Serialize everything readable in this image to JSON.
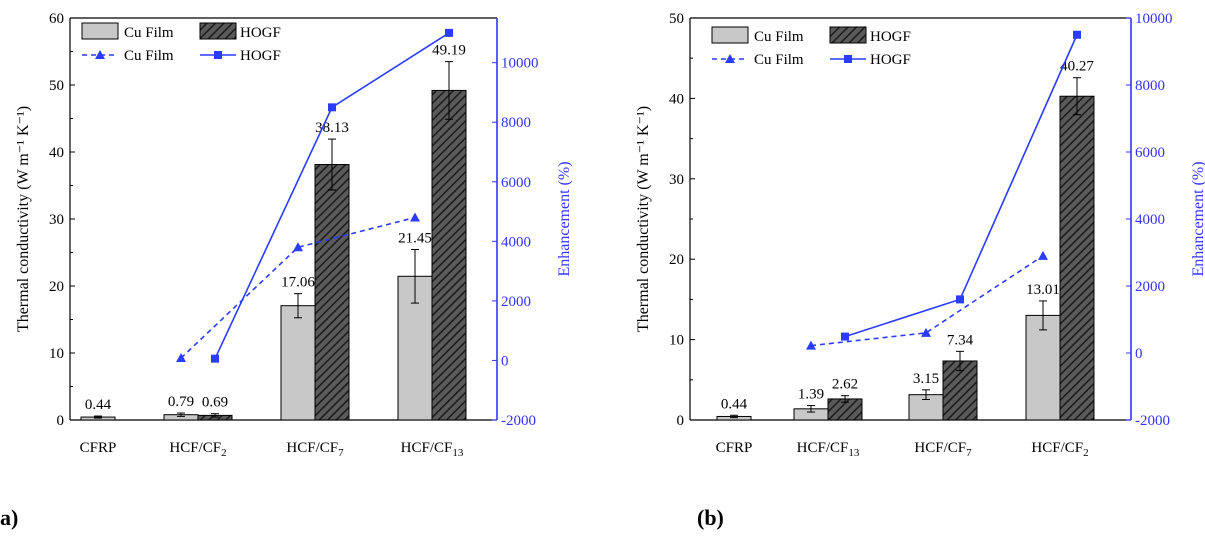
{
  "colors": {
    "axis_left": "#000000",
    "axis_right": "#3333ff",
    "bar_cu": "#c8c8c8",
    "bar_hogf_bg": "#666666",
    "line": "#2a3cff"
  },
  "panels": {
    "a": {
      "label": "a)"
    },
    "b": {
      "label": "(b)"
    }
  },
  "chart_data": [
    {
      "panel": "a",
      "type": "bar+line",
      "title": "",
      "ylabel_left": "Thermal conductivity (W m⁻¹ K⁻¹)",
      "ylabel_right": "Enhancement (%)",
      "ylim_left": [
        0,
        60
      ],
      "ylim_right": [
        -2000,
        11500
      ],
      "yticks_left": [
        0,
        10,
        20,
        30,
        40,
        50,
        60
      ],
      "yticks_right": [
        -2000,
        0,
        2000,
        4000,
        6000,
        8000,
        10000
      ],
      "categories": [
        {
          "base": "CFRP",
          "sub": ""
        },
        {
          "base": "HCF/CF",
          "sub": "2"
        },
        {
          "base": "HCF/CF",
          "sub": "7"
        },
        {
          "base": "HCF/CF",
          "sub": "13"
        }
      ],
      "bars": [
        {
          "name": "Cu Film",
          "pattern": "solid",
          "values": [
            0.44,
            0.79,
            17.06,
            21.45
          ],
          "errors": [
            0.15,
            0.25,
            1.8,
            4.0
          ],
          "labels": [
            "0.44",
            "0.79",
            "17.06",
            "21.45"
          ]
        },
        {
          "name": "HOGF",
          "pattern": "hatch",
          "values": [
            null,
            0.69,
            38.13,
            49.19
          ],
          "errors": [
            null,
            0.25,
            3.8,
            4.3
          ],
          "labels": [
            "",
            "0.69",
            "38.13",
            "49.19"
          ]
        }
      ],
      "lines": [
        {
          "name": "Cu Film",
          "style": "dashed",
          "marker": "triangle",
          "values": [
            null,
            80,
            3800,
            4800
          ]
        },
        {
          "name": "HOGF",
          "style": "solid",
          "marker": "square",
          "values": [
            null,
            60,
            8500,
            11000
          ]
        }
      ],
      "legend": "top-left"
    },
    {
      "panel": "b",
      "type": "bar+line",
      "title": "",
      "ylabel_left": "Thermal conductivity (W m⁻¹ K⁻¹)",
      "ylabel_right": "Enhancement (%)",
      "ylim_left": [
        0,
        50
      ],
      "ylim_right": [
        -2000,
        10000
      ],
      "yticks_left": [
        0,
        10,
        20,
        30,
        40,
        50
      ],
      "yticks_right": [
        -2000,
        0,
        2000,
        4000,
        6000,
        8000,
        10000
      ],
      "categories": [
        {
          "base": "CFRP",
          "sub": ""
        },
        {
          "base": "HCF/CF",
          "sub": "13"
        },
        {
          "base": "HCF/CF",
          "sub": "7"
        },
        {
          "base": "HCF/CF",
          "sub": "2"
        }
      ],
      "bars": [
        {
          "name": "Cu Film",
          "pattern": "solid",
          "values": [
            0.44,
            1.39,
            3.15,
            13.01
          ],
          "errors": [
            0.15,
            0.4,
            0.6,
            1.8
          ],
          "labels": [
            "0.44",
            "1.39",
            "3.15",
            "13.01"
          ]
        },
        {
          "name": "HOGF",
          "pattern": "hatch",
          "values": [
            null,
            2.62,
            7.34,
            40.27
          ],
          "errors": [
            null,
            0.4,
            1.2,
            2.3
          ],
          "labels": [
            "",
            "2.62",
            "7.34",
            "40.27"
          ]
        }
      ],
      "lines": [
        {
          "name": "Cu Film",
          "style": "dashed",
          "marker": "triangle",
          "values": [
            null,
            220,
            600,
            2900
          ]
        },
        {
          "name": "HOGF",
          "style": "solid",
          "marker": "square",
          "values": [
            null,
            490,
            1600,
            9500
          ]
        }
      ],
      "legend": "top-left"
    }
  ]
}
